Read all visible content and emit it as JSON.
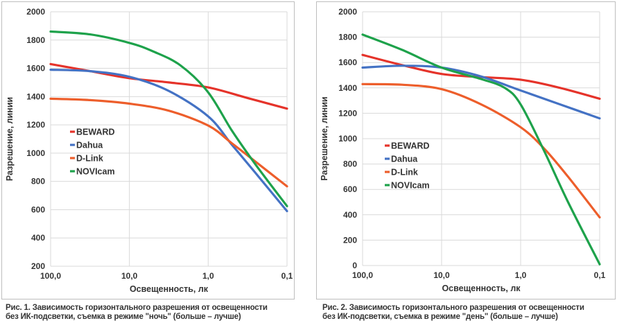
{
  "colors": {
    "BEWARD": "#e5332a",
    "Dahua": "#4472c4",
    "D-Link": "#ed5e2b",
    "NOVIcam": "#1ea24b",
    "grid": "#d9d9d9",
    "text": "#333333"
  },
  "chart_data": [
    {
      "type": "line",
      "xlabel": "Освещенность, лк",
      "ylabel": "Разрешение, линии",
      "x_ticks": [
        "100,0",
        "10,0",
        "1,0",
        "0,1"
      ],
      "x_domain": [
        0,
        3
      ],
      "ylim": [
        200,
        2000
      ],
      "y_step": 200,
      "y_ticks": [
        "200",
        "400",
        "600",
        "800",
        "1000",
        "1200",
        "1400",
        "1600",
        "1800",
        "2000"
      ],
      "legend_position": "middle-left",
      "series": [
        {
          "name": "BEWARD",
          "x": [
            0,
            0.5,
            1,
            1.5,
            2,
            2.5,
            3
          ],
          "values": [
            1630,
            1580,
            1530,
            1500,
            1465,
            1390,
            1315
          ]
        },
        {
          "name": "Dahua",
          "x": [
            0,
            0.5,
            1,
            1.5,
            2,
            2.3,
            2.6,
            3
          ],
          "values": [
            1590,
            1580,
            1540,
            1440,
            1260,
            1060,
            860,
            590
          ]
        },
        {
          "name": "D-Link",
          "x": [
            0,
            0.5,
            1,
            1.5,
            2,
            2.3,
            2.6,
            3
          ],
          "values": [
            1385,
            1375,
            1350,
            1300,
            1195,
            1070,
            940,
            765
          ]
        },
        {
          "name": "NOVIcam",
          "x": [
            0,
            0.5,
            1,
            1.3,
            1.65,
            2,
            2.3,
            2.6,
            3
          ],
          "values": [
            1860,
            1840,
            1780,
            1720,
            1620,
            1430,
            1160,
            920,
            625
          ]
        }
      ],
      "caption": [
        "Рис. 1. Зависимость горизонтального разрешения от освещенности",
        "без ИК-подсветки, съемка в режиме \"ночь\" (больше – лучше)"
      ]
    },
    {
      "type": "line",
      "xlabel": "Освещенность, лк",
      "ylabel": "Разрешение, линии",
      "x_ticks": [
        "100,0",
        "10,0",
        "1,0",
        "0,1"
      ],
      "x_domain": [
        0,
        3
      ],
      "ylim": [
        0,
        2000
      ],
      "y_step": 200,
      "y_ticks": [
        "0",
        "200",
        "400",
        "600",
        "800",
        "1000",
        "1200",
        "1400",
        "1600",
        "1800",
        "2000"
      ],
      "legend_position": "middle-left",
      "series": [
        {
          "name": "BEWARD",
          "x": [
            0,
            0.5,
            1,
            1.5,
            2,
            2.5,
            3
          ],
          "values": [
            1660,
            1580,
            1510,
            1485,
            1465,
            1400,
            1315
          ]
        },
        {
          "name": "Dahua",
          "x": [
            0,
            0.5,
            1,
            1.5,
            2,
            2.5,
            3
          ],
          "values": [
            1560,
            1575,
            1560,
            1490,
            1380,
            1270,
            1160
          ]
        },
        {
          "name": "D-Link",
          "x": [
            0,
            0.5,
            1,
            1.5,
            2,
            2.3,
            2.6,
            3
          ],
          "values": [
            1430,
            1425,
            1390,
            1270,
            1090,
            920,
            700,
            380
          ]
        },
        {
          "name": "NOVIcam",
          "x": [
            0,
            0.5,
            1,
            1.5,
            1.8,
            2,
            2.3,
            2.6,
            3
          ],
          "values": [
            1820,
            1700,
            1560,
            1470,
            1400,
            1270,
            900,
            500,
            10
          ]
        }
      ],
      "caption": [
        "Рис. 2. Зависимость горизонтального разрешения от освещенности",
        "без ИК-подсветки, съемка в режиме \"день\" (больше – лучше)"
      ]
    }
  ]
}
